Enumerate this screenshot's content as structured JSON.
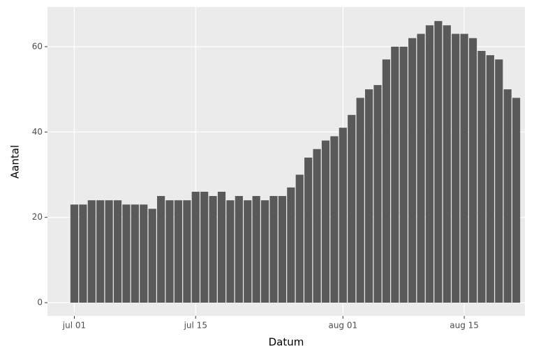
{
  "chart_data": {
    "type": "bar",
    "x_label": "Datum",
    "y_label": "Aantal",
    "x": [
      0,
      1,
      2,
      3,
      4,
      5,
      6,
      7,
      8,
      9,
      10,
      11,
      12,
      13,
      14,
      15,
      16,
      17,
      18,
      19,
      20,
      21,
      22,
      23,
      24,
      25,
      26,
      27,
      28,
      29,
      30,
      31,
      32,
      33,
      34,
      35,
      36,
      37,
      38,
      39,
      40,
      41,
      42,
      43,
      44,
      45,
      46,
      47,
      48,
      49,
      50,
      51
    ],
    "values": [
      23,
      23,
      24,
      24,
      24,
      24,
      23,
      23,
      23,
      22,
      25,
      24,
      24,
      24,
      26,
      26,
      25,
      26,
      24,
      25,
      24,
      25,
      24,
      25,
      25,
      27,
      30,
      34,
      36,
      38,
      39,
      41,
      44,
      48,
      50,
      51,
      57,
      60,
      60,
      62,
      63,
      65,
      66,
      65,
      63,
      63,
      62,
      59,
      58,
      57,
      50,
      48
    ],
    "color": "#595959",
    "xlim": [
      -3.1,
      52.0
    ],
    "xticks": [
      {
        "value": 0,
        "label": "jul 01"
      },
      {
        "value": 14,
        "label": "jul 15"
      },
      {
        "value": 31,
        "label": "aug 01"
      },
      {
        "value": 45,
        "label": "aug 15"
      }
    ],
    "ylim": [
      -3.1,
      69.3
    ],
    "yticks": [
      0,
      20,
      40,
      60
    ],
    "grid": true
  }
}
